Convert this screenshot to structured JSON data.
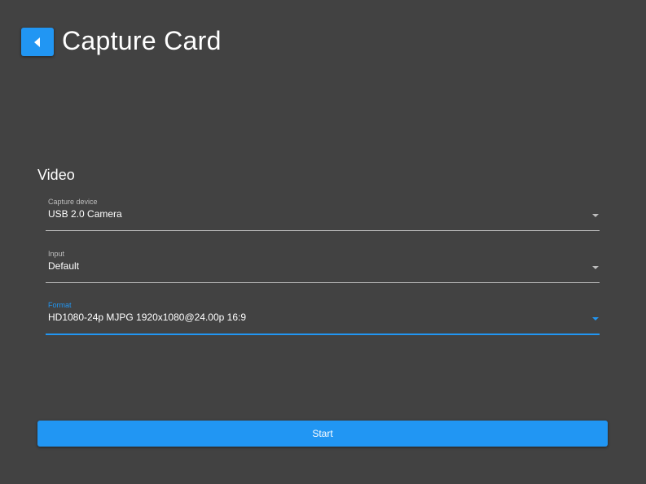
{
  "header": {
    "title": "Capture Card",
    "back_icon": "chevron-left-icon"
  },
  "video": {
    "section_title": "Video",
    "fields": [
      {
        "label": "Capture device",
        "value": "USB 2.0 Camera"
      },
      {
        "label": "Input",
        "value": "Default"
      },
      {
        "label": "Format",
        "value": "HD1080-24p MJPG 1920x1080@24.00p 16:9",
        "focused": true
      }
    ]
  },
  "start_label": "Start",
  "colors": {
    "accent": "#2196f3",
    "background": "#424242"
  }
}
